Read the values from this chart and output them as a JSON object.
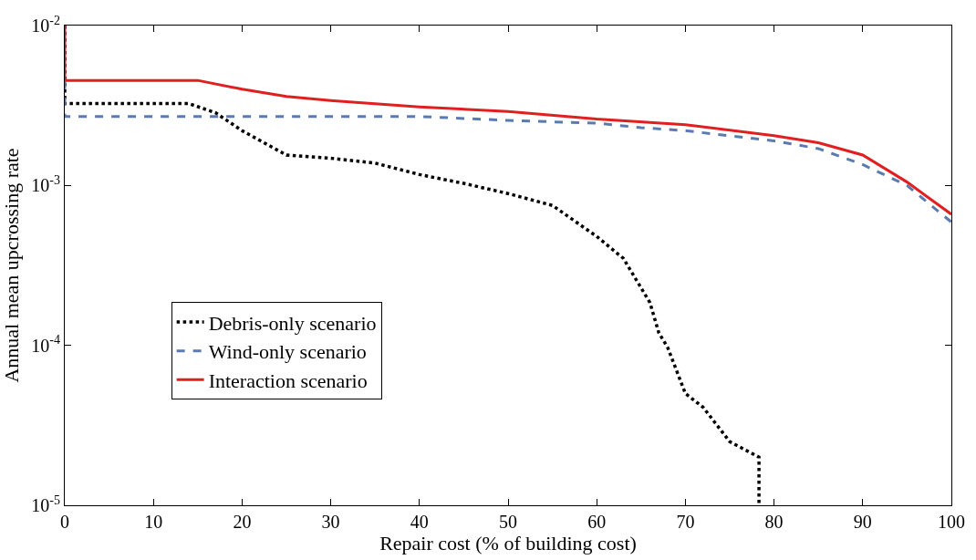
{
  "chart_data": {
    "type": "line",
    "xlabel": "Repair cost (% of building cost)",
    "ylabel": "Annual mean upcrossing rate",
    "log": "y",
    "grid": false,
    "legend": "bottom left",
    "xlim": [
      0,
      100
    ],
    "xticks": [
      0,
      10,
      20,
      30,
      40,
      50,
      60,
      70,
      80,
      90,
      100
    ],
    "ylim": [
      1e-05,
      0.01
    ],
    "yticks": [
      {
        "value": 1e-05,
        "label": "10$^{-5}$"
      },
      {
        "value": 0.0001,
        "label": "10$^{-4}$"
      },
      {
        "value": 0.001,
        "label": "10$^{-3}$"
      },
      {
        "value": 0.01,
        "label": "10$^{-2}$"
      }
    ],
    "series": [
      {
        "name": "Debris-only scenario",
        "color": "#000000",
        "line_style": "dotted",
        "x": [
          0,
          0,
          14,
          17,
          20,
          25,
          30,
          35,
          40,
          45,
          50,
          55,
          60,
          63,
          66,
          67,
          68,
          70,
          72,
          75,
          78.3,
          78.3
        ],
        "values": [
          0.01,
          0.00325,
          0.00325,
          0.00285,
          0.0022,
          0.00155,
          0.00148,
          0.00138,
          0.00117,
          0.00103,
          0.00089,
          0.00075,
          0.00048,
          0.00035,
          0.000185,
          0.00012,
          9.7e-05,
          5e-05,
          4.1e-05,
          2.5e-05,
          2e-05,
          1e-05
        ]
      },
      {
        "name": "Wind-only scenario",
        "color": "#5b7bb0",
        "line_style": "dashed",
        "x": [
          0,
          0,
          40,
          50,
          60,
          65,
          70,
          80,
          85,
          90,
          95,
          100
        ],
        "values": [
          0.0045,
          0.0027,
          0.0027,
          0.00255,
          0.00245,
          0.0023,
          0.0022,
          0.0019,
          0.0017,
          0.00135,
          0.001,
          0.00059
        ]
      },
      {
        "name": "Interaction scenario",
        "color": "#e02020",
        "line_style": "solid",
        "x": [
          0,
          0,
          15,
          20,
          25,
          30,
          40,
          50,
          60,
          70,
          80,
          85,
          90,
          95,
          100
        ],
        "values": [
          0.01,
          0.00454,
          0.00454,
          0.004,
          0.0036,
          0.0034,
          0.0031,
          0.0029,
          0.0026,
          0.0024,
          0.00205,
          0.00185,
          0.00155,
          0.00105,
          0.00066
        ]
      }
    ]
  }
}
